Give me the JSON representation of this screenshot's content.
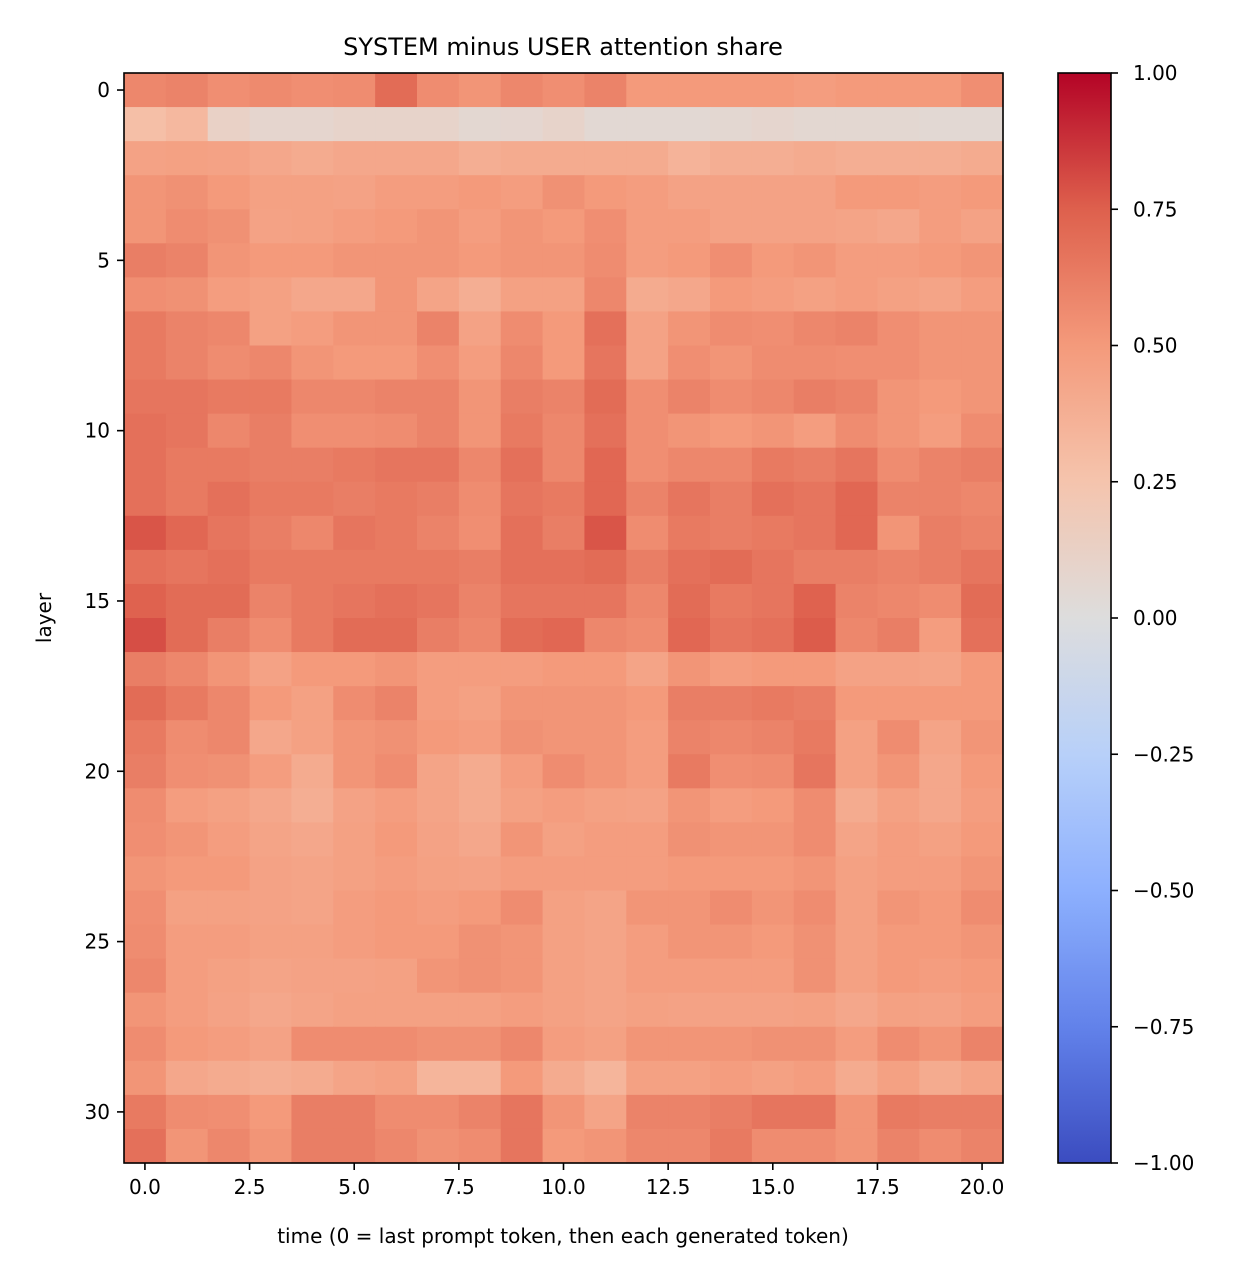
{
  "chart_data": {
    "type": "heatmap",
    "title": "SYSTEM minus USER attention share",
    "xlabel": "time (0 = last prompt token, then each generated token)",
    "ylabel": "layer",
    "x_ticks": [
      0.0,
      2.5,
      5.0,
      7.5,
      10.0,
      12.5,
      15.0,
      17.5,
      20.0
    ],
    "x_tick_labels": [
      "0.0",
      "2.5",
      "5.0",
      "7.5",
      "10.0",
      "12.5",
      "15.0",
      "17.5",
      "20.0"
    ],
    "y_ticks": [
      0,
      5,
      10,
      15,
      20,
      25,
      30
    ],
    "y_tick_labels": [
      "0",
      "5",
      "10",
      "15",
      "20",
      "25",
      "30"
    ],
    "colorbar": {
      "colormap": "coolwarm",
      "vmin": -1.0,
      "vmax": 1.0,
      "ticks": [
        1.0,
        0.75,
        0.5,
        0.25,
        0.0,
        -0.25,
        -0.5,
        -0.75,
        -1.0
      ],
      "tick_labels": [
        "1.00",
        "0.75",
        "0.50",
        "0.25",
        "0.00",
        "−0.25",
        "−0.50",
        "−0.75",
        "−1.00"
      ]
    },
    "x": [
      0,
      1,
      2,
      3,
      4,
      5,
      6,
      7,
      8,
      9,
      10,
      11,
      12,
      13,
      14,
      15,
      16,
      17,
      18,
      19,
      20
    ],
    "y": [
      0,
      1,
      2,
      3,
      4,
      5,
      6,
      7,
      8,
      9,
      10,
      11,
      12,
      13,
      14,
      15,
      16,
      17,
      18,
      19,
      20,
      21,
      22,
      23,
      24,
      25,
      26,
      27,
      28,
      29,
      30,
      31
    ],
    "values": [
      [
        0.58,
        0.6,
        0.55,
        0.57,
        0.55,
        0.56,
        0.7,
        0.56,
        0.52,
        0.58,
        0.55,
        0.6,
        0.5,
        0.5,
        0.5,
        0.5,
        0.48,
        0.5,
        0.5,
        0.5,
        0.55
      ],
      [
        0.28,
        0.32,
        0.12,
        0.08,
        0.08,
        0.1,
        0.1,
        0.1,
        0.06,
        0.07,
        0.1,
        0.05,
        0.05,
        0.05,
        0.06,
        0.08,
        0.06,
        0.06,
        0.06,
        0.05,
        0.05
      ],
      [
        0.45,
        0.46,
        0.45,
        0.42,
        0.4,
        0.42,
        0.42,
        0.42,
        0.38,
        0.4,
        0.4,
        0.4,
        0.4,
        0.35,
        0.38,
        0.38,
        0.4,
        0.38,
        0.38,
        0.38,
        0.4
      ],
      [
        0.52,
        0.54,
        0.5,
        0.46,
        0.46,
        0.45,
        0.48,
        0.48,
        0.5,
        0.48,
        0.54,
        0.5,
        0.48,
        0.45,
        0.45,
        0.45,
        0.45,
        0.5,
        0.5,
        0.48,
        0.5
      ],
      [
        0.52,
        0.56,
        0.54,
        0.45,
        0.46,
        0.48,
        0.5,
        0.52,
        0.48,
        0.52,
        0.5,
        0.55,
        0.48,
        0.48,
        0.45,
        0.45,
        0.45,
        0.44,
        0.42,
        0.48,
        0.45
      ],
      [
        0.62,
        0.6,
        0.52,
        0.5,
        0.5,
        0.52,
        0.52,
        0.52,
        0.5,
        0.52,
        0.52,
        0.56,
        0.48,
        0.5,
        0.55,
        0.5,
        0.52,
        0.48,
        0.48,
        0.5,
        0.52
      ],
      [
        0.55,
        0.54,
        0.48,
        0.46,
        0.42,
        0.42,
        0.52,
        0.44,
        0.38,
        0.46,
        0.46,
        0.58,
        0.4,
        0.42,
        0.5,
        0.48,
        0.46,
        0.48,
        0.46,
        0.44,
        0.48
      ],
      [
        0.64,
        0.6,
        0.58,
        0.46,
        0.48,
        0.52,
        0.52,
        0.6,
        0.45,
        0.56,
        0.5,
        0.68,
        0.45,
        0.52,
        0.56,
        0.55,
        0.58,
        0.6,
        0.55,
        0.52,
        0.52
      ],
      [
        0.64,
        0.6,
        0.56,
        0.58,
        0.52,
        0.5,
        0.5,
        0.55,
        0.48,
        0.58,
        0.5,
        0.66,
        0.45,
        0.55,
        0.52,
        0.56,
        0.56,
        0.55,
        0.55,
        0.52,
        0.52
      ],
      [
        0.66,
        0.66,
        0.64,
        0.64,
        0.58,
        0.58,
        0.6,
        0.6,
        0.52,
        0.62,
        0.6,
        0.7,
        0.55,
        0.6,
        0.56,
        0.58,
        0.62,
        0.6,
        0.52,
        0.5,
        0.52
      ],
      [
        0.68,
        0.66,
        0.58,
        0.62,
        0.55,
        0.55,
        0.56,
        0.6,
        0.52,
        0.64,
        0.58,
        0.68,
        0.55,
        0.52,
        0.5,
        0.52,
        0.48,
        0.56,
        0.52,
        0.48,
        0.56
      ],
      [
        0.68,
        0.64,
        0.64,
        0.62,
        0.62,
        0.64,
        0.66,
        0.66,
        0.58,
        0.68,
        0.58,
        0.72,
        0.55,
        0.58,
        0.58,
        0.64,
        0.62,
        0.66,
        0.56,
        0.6,
        0.62
      ],
      [
        0.68,
        0.64,
        0.68,
        0.64,
        0.64,
        0.62,
        0.64,
        0.62,
        0.56,
        0.66,
        0.64,
        0.72,
        0.6,
        0.66,
        0.62,
        0.68,
        0.66,
        0.72,
        0.6,
        0.6,
        0.58
      ],
      [
        0.78,
        0.72,
        0.66,
        0.62,
        0.58,
        0.66,
        0.64,
        0.6,
        0.55,
        0.68,
        0.62,
        0.78,
        0.56,
        0.64,
        0.62,
        0.64,
        0.66,
        0.72,
        0.52,
        0.62,
        0.6
      ],
      [
        0.68,
        0.66,
        0.68,
        0.64,
        0.64,
        0.64,
        0.64,
        0.64,
        0.62,
        0.68,
        0.68,
        0.7,
        0.62,
        0.68,
        0.7,
        0.66,
        0.62,
        0.62,
        0.6,
        0.62,
        0.66
      ],
      [
        0.74,
        0.7,
        0.7,
        0.6,
        0.64,
        0.66,
        0.68,
        0.66,
        0.6,
        0.66,
        0.66,
        0.66,
        0.58,
        0.7,
        0.64,
        0.66,
        0.74,
        0.6,
        0.58,
        0.56,
        0.7
      ],
      [
        0.8,
        0.7,
        0.62,
        0.56,
        0.64,
        0.7,
        0.7,
        0.62,
        0.58,
        0.7,
        0.72,
        0.58,
        0.56,
        0.72,
        0.66,
        0.68,
        0.76,
        0.58,
        0.62,
        0.48,
        0.68
      ],
      [
        0.62,
        0.58,
        0.52,
        0.45,
        0.5,
        0.5,
        0.52,
        0.48,
        0.48,
        0.48,
        0.5,
        0.5,
        0.44,
        0.52,
        0.48,
        0.5,
        0.5,
        0.45,
        0.45,
        0.44,
        0.5
      ],
      [
        0.7,
        0.64,
        0.58,
        0.5,
        0.46,
        0.56,
        0.6,
        0.48,
        0.46,
        0.52,
        0.52,
        0.52,
        0.5,
        0.62,
        0.62,
        0.64,
        0.62,
        0.5,
        0.5,
        0.5,
        0.5
      ],
      [
        0.64,
        0.56,
        0.58,
        0.42,
        0.46,
        0.52,
        0.54,
        0.5,
        0.48,
        0.54,
        0.52,
        0.52,
        0.48,
        0.6,
        0.58,
        0.6,
        0.64,
        0.46,
        0.56,
        0.44,
        0.52
      ],
      [
        0.62,
        0.55,
        0.54,
        0.48,
        0.4,
        0.52,
        0.56,
        0.44,
        0.4,
        0.48,
        0.56,
        0.52,
        0.48,
        0.64,
        0.55,
        0.56,
        0.66,
        0.46,
        0.52,
        0.42,
        0.5
      ],
      [
        0.56,
        0.48,
        0.46,
        0.42,
        0.38,
        0.45,
        0.48,
        0.44,
        0.4,
        0.46,
        0.48,
        0.46,
        0.45,
        0.52,
        0.48,
        0.5,
        0.56,
        0.4,
        0.46,
        0.42,
        0.48
      ],
      [
        0.55,
        0.52,
        0.48,
        0.44,
        0.42,
        0.46,
        0.5,
        0.45,
        0.42,
        0.52,
        0.46,
        0.48,
        0.48,
        0.54,
        0.52,
        0.52,
        0.56,
        0.44,
        0.48,
        0.46,
        0.5
      ],
      [
        0.52,
        0.5,
        0.5,
        0.45,
        0.44,
        0.46,
        0.48,
        0.46,
        0.45,
        0.48,
        0.48,
        0.48,
        0.48,
        0.5,
        0.5,
        0.5,
        0.52,
        0.46,
        0.48,
        0.48,
        0.52
      ],
      [
        0.55,
        0.46,
        0.46,
        0.45,
        0.44,
        0.48,
        0.5,
        0.48,
        0.5,
        0.56,
        0.46,
        0.44,
        0.52,
        0.52,
        0.56,
        0.52,
        0.56,
        0.46,
        0.52,
        0.5,
        0.56
      ],
      [
        0.56,
        0.48,
        0.48,
        0.46,
        0.46,
        0.48,
        0.5,
        0.5,
        0.54,
        0.52,
        0.46,
        0.44,
        0.48,
        0.52,
        0.52,
        0.5,
        0.54,
        0.46,
        0.5,
        0.5,
        0.52
      ],
      [
        0.58,
        0.48,
        0.46,
        0.44,
        0.45,
        0.45,
        0.46,
        0.52,
        0.54,
        0.52,
        0.46,
        0.44,
        0.48,
        0.48,
        0.48,
        0.48,
        0.54,
        0.46,
        0.5,
        0.48,
        0.5
      ],
      [
        0.52,
        0.48,
        0.45,
        0.42,
        0.44,
        0.46,
        0.46,
        0.46,
        0.46,
        0.48,
        0.46,
        0.44,
        0.46,
        0.45,
        0.45,
        0.45,
        0.46,
        0.42,
        0.46,
        0.45,
        0.48
      ],
      [
        0.56,
        0.5,
        0.48,
        0.45,
        0.56,
        0.56,
        0.56,
        0.54,
        0.54,
        0.58,
        0.48,
        0.46,
        0.52,
        0.52,
        0.52,
        0.54,
        0.54,
        0.48,
        0.56,
        0.52,
        0.6
      ],
      [
        0.52,
        0.42,
        0.4,
        0.38,
        0.4,
        0.44,
        0.46,
        0.34,
        0.34,
        0.5,
        0.4,
        0.34,
        0.46,
        0.46,
        0.48,
        0.46,
        0.48,
        0.4,
        0.46,
        0.4,
        0.44
      ],
      [
        0.64,
        0.56,
        0.55,
        0.5,
        0.62,
        0.62,
        0.56,
        0.56,
        0.6,
        0.66,
        0.52,
        0.44,
        0.6,
        0.6,
        0.62,
        0.66,
        0.66,
        0.52,
        0.64,
        0.62,
        0.62
      ],
      [
        0.68,
        0.52,
        0.58,
        0.52,
        0.62,
        0.62,
        0.58,
        0.54,
        0.56,
        0.66,
        0.5,
        0.52,
        0.58,
        0.58,
        0.64,
        0.56,
        0.56,
        0.52,
        0.6,
        0.56,
        0.6
      ]
    ]
  }
}
